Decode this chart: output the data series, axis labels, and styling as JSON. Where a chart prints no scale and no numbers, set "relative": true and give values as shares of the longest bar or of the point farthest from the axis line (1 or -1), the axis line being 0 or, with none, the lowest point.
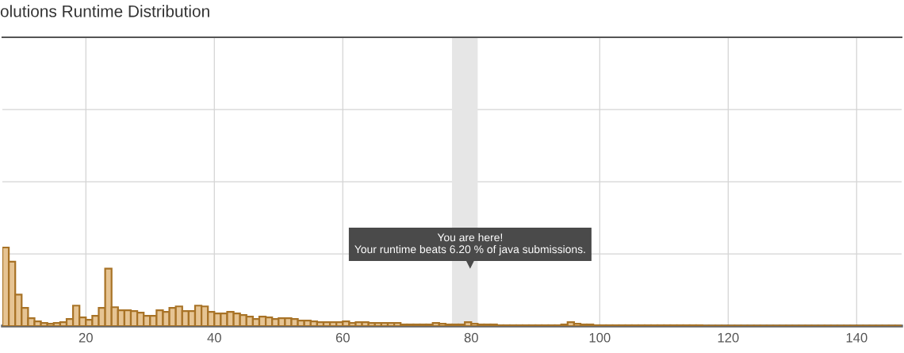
{
  "chart_data": {
    "type": "bar",
    "title": "olutions Runtime Distribution",
    "relative": true,
    "x": [
      7.5,
      8.5,
      9.5,
      10.5,
      11.5,
      12.5,
      13.5,
      14.5,
      15.5,
      16.5,
      17.5,
      18.5,
      19.5,
      20.5,
      21.5,
      22.5,
      23.5,
      24.5,
      25.5,
      26.5,
      27.5,
      28.5,
      29.5,
      30.5,
      31.5,
      32.5,
      33.5,
      34.5,
      35.5,
      36.5,
      37.5,
      38.5,
      39.5,
      40.5,
      41.5,
      42.5,
      43.5,
      44.5,
      45.5,
      46.5,
      47.5,
      48.5,
      49.5,
      50.5,
      51.5,
      52.5,
      53.5,
      54.5,
      55.5,
      56.5,
      57.5,
      58.5,
      59.5,
      60.5,
      61.5,
      62.5,
      63.5,
      64.5,
      65.5,
      66.5,
      67.5,
      68.5,
      69.5,
      70.5,
      71.5,
      72.5,
      73.5,
      74.5,
      75.5,
      76.5,
      77.5,
      78.5,
      79.5,
      80.5,
      81.5,
      82.5,
      83.5,
      84.5,
      85.5,
      86.5,
      87.5,
      88.5,
      89.5,
      90.5,
      91.5,
      92.5,
      93.5,
      94.5,
      95.5,
      96.5,
      97.5,
      98.5,
      99.5,
      100.5,
      101.5,
      102.5,
      103.5,
      104.5,
      105.5,
      106.5,
      107.5,
      108.5,
      109.5,
      110.5,
      111.5,
      112.5,
      113.5,
      114.5,
      115.5,
      116.5,
      117.5,
      118.5,
      119.5,
      120.5,
      121.5,
      122.5,
      123.5,
      124.5,
      125.5,
      126.5,
      127.5,
      128.5,
      129.5,
      130.5,
      131.5,
      132.5,
      133.5,
      134.5,
      135.5,
      136.5,
      137.5,
      138.5,
      139.5,
      140.5,
      141.5,
      142.5,
      143.5,
      144.5,
      145.5,
      146.5
    ],
    "values": [
      1.0,
      0.82,
      0.4,
      0.23,
      0.1,
      0.06,
      0.04,
      0.03,
      0.04,
      0.05,
      0.09,
      0.26,
      0.11,
      0.08,
      0.13,
      0.23,
      0.73,
      0.24,
      0.2,
      0.2,
      0.19,
      0.17,
      0.13,
      0.13,
      0.2,
      0.18,
      0.23,
      0.25,
      0.19,
      0.19,
      0.26,
      0.25,
      0.18,
      0.16,
      0.16,
      0.18,
      0.16,
      0.14,
      0.12,
      0.09,
      0.12,
      0.11,
      0.09,
      0.1,
      0.1,
      0.09,
      0.07,
      0.07,
      0.06,
      0.05,
      0.05,
      0.05,
      0.05,
      0.06,
      0.04,
      0.05,
      0.05,
      0.04,
      0.04,
      0.04,
      0.04,
      0.04,
      0.02,
      0.02,
      0.02,
      0.02,
      0.02,
      0.04,
      0.03,
      0.02,
      0.02,
      0.02,
      0.05,
      0.03,
      0.02,
      0.02,
      0.02,
      0.01,
      0.01,
      0.01,
      0.01,
      0.01,
      0.01,
      0.01,
      0.01,
      0.01,
      0.01,
      0.02,
      0.05,
      0.03,
      0.02,
      0.02,
      0.01,
      0.01,
      0.01,
      0.01,
      0.01,
      0.01,
      0.01,
      0.01,
      0.01,
      0.01,
      0.01,
      0.01,
      0.01,
      0.01,
      0.01,
      0.01,
      0.01,
      0.005,
      0.005,
      0.005,
      0.005,
      0.005,
      0.005,
      0.005,
      0.005,
      0.005,
      0.005,
      0.005,
      0.005,
      0.005,
      0.005,
      0.005,
      0.005,
      0.005,
      0.005,
      0.005,
      0.005,
      0.005,
      0.005,
      0.005,
      0.005,
      0.005,
      0.005,
      0.005,
      0.005,
      0.005,
      0.005,
      0.005
    ],
    "color": "#e6c493",
    "xlim": [
      7,
      147
    ],
    "xticks": [
      20,
      40,
      60,
      80,
      100,
      120,
      140
    ],
    "grid": true,
    "bands": [
      {
        "axis": "x",
        "from": 77,
        "to": 81,
        "color": "#e6e6e6"
      }
    ],
    "annotations": [
      "You are here!\nYour runtime beats 6.20 % of java submissions."
    ]
  }
}
